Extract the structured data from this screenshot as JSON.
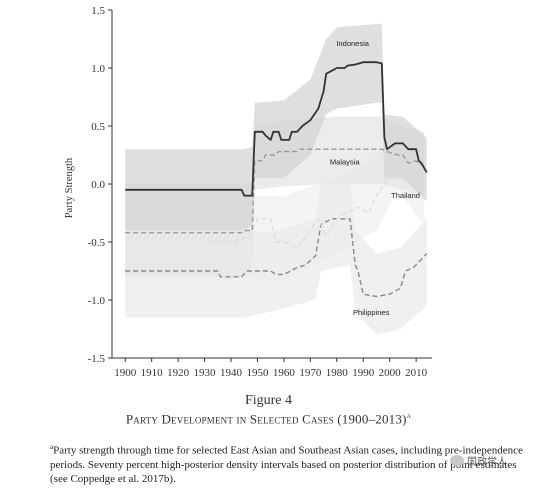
{
  "chart_data": {
    "type": "line",
    "xlabel": "",
    "ylabel": "Party Strength",
    "xlim": [
      1895,
      2016
    ],
    "ylim": [
      -1.5,
      1.5
    ],
    "x_ticks": [
      "1900",
      "1910",
      "1920",
      "1930",
      "1940",
      "1950",
      "1960",
      "1970",
      "1980",
      "1990",
      "2000",
      "2010"
    ],
    "y_ticks": [
      "1.5",
      "1.0",
      "0.5",
      "0.0",
      "-0.5",
      "-1.0",
      "-1.5"
    ],
    "grid": false,
    "series": [
      {
        "name": "Indonesia",
        "style": "solid",
        "color": "#333333",
        "band_color": "#d4d4d4",
        "points": [
          [
            1900,
            -0.05
          ],
          [
            1944,
            -0.05
          ],
          [
            1945,
            -0.1
          ],
          [
            1948,
            -0.1
          ],
          [
            1949,
            0.45
          ],
          [
            1952,
            0.45
          ],
          [
            1953,
            0.42
          ],
          [
            1955,
            0.38
          ],
          [
            1956,
            0.45
          ],
          [
            1958,
            0.45
          ],
          [
            1959,
            0.38
          ],
          [
            1962,
            0.38
          ],
          [
            1963,
            0.45
          ],
          [
            1965,
            0.45
          ],
          [
            1967,
            0.5
          ],
          [
            1970,
            0.55
          ],
          [
            1973,
            0.65
          ],
          [
            1975,
            0.8
          ],
          [
            1976,
            0.95
          ],
          [
            1980,
            1.0
          ],
          [
            1983,
            1.0
          ],
          [
            1984,
            1.02
          ],
          [
            1987,
            1.03
          ],
          [
            1990,
            1.05
          ],
          [
            1995,
            1.05
          ],
          [
            1997,
            1.04
          ],
          [
            1998,
            0.4
          ],
          [
            1999,
            0.3
          ],
          [
            2002,
            0.35
          ],
          [
            2005,
            0.35
          ],
          [
            2007,
            0.3
          ],
          [
            2010,
            0.3
          ],
          [
            2011,
            0.2
          ],
          [
            2012,
            0.18
          ],
          [
            2014,
            0.1
          ]
        ],
        "band": [
          [
            1900,
            -0.4,
            0.3
          ],
          [
            1945,
            -0.4,
            0.3
          ],
          [
            1948,
            -0.35,
            0.32
          ],
          [
            1949,
            0.05,
            0.7
          ],
          [
            1960,
            0.05,
            0.72
          ],
          [
            1970,
            0.25,
            0.9
          ],
          [
            1976,
            0.6,
            1.25
          ],
          [
            1980,
            0.65,
            1.35
          ],
          [
            1995,
            0.7,
            1.38
          ],
          [
            1997,
            0.7,
            1.38
          ],
          [
            1998,
            0.05,
            0.6
          ],
          [
            2005,
            0.05,
            0.58
          ],
          [
            2014,
            -0.15,
            0.4
          ]
        ]
      },
      {
        "name": "Malaysia",
        "style": "dashed",
        "color": "#999999",
        "band_color": "#e6e6e6",
        "points": [
          [
            1900,
            -0.42
          ],
          [
            1944,
            -0.42
          ],
          [
            1946,
            -0.4
          ],
          [
            1948,
            -0.4
          ],
          [
            1949,
            0.2
          ],
          [
            1952,
            0.2
          ],
          [
            1953,
            0.25
          ],
          [
            1957,
            0.25
          ],
          [
            1958,
            0.28
          ],
          [
            1965,
            0.28
          ],
          [
            1966,
            0.3
          ],
          [
            1975,
            0.3
          ],
          [
            1980,
            0.3
          ],
          [
            1990,
            0.3
          ],
          [
            1997,
            0.3
          ],
          [
            1999,
            0.28
          ],
          [
            2003,
            0.25
          ],
          [
            2005,
            0.25
          ],
          [
            2007,
            0.18
          ],
          [
            2010,
            0.2
          ],
          [
            2013,
            0.15
          ]
        ],
        "band": [
          [
            1900,
            -0.8,
            0.0
          ],
          [
            1945,
            -0.8,
            0.0
          ],
          [
            1948,
            -0.7,
            0.0
          ],
          [
            1949,
            -0.05,
            0.5
          ],
          [
            1960,
            -0.02,
            0.55
          ],
          [
            1980,
            0.0,
            0.58
          ],
          [
            1997,
            0.0,
            0.58
          ],
          [
            2005,
            -0.05,
            0.5
          ],
          [
            2013,
            -0.1,
            0.45
          ]
        ]
      },
      {
        "name": "Thailand",
        "style": "dashed",
        "color": "#dddddd",
        "band_color": "#f0f0f0",
        "points": [
          [
            1932,
            -0.5
          ],
          [
            1940,
            -0.5
          ],
          [
            1947,
            -0.45
          ],
          [
            1950,
            -0.3
          ],
          [
            1955,
            -0.3
          ],
          [
            1957,
            -0.5
          ],
          [
            1960,
            -0.5
          ],
          [
            1965,
            -0.55
          ],
          [
            1970,
            -0.4
          ],
          [
            1973,
            -0.3
          ],
          [
            1976,
            -0.45
          ],
          [
            1980,
            -0.3
          ],
          [
            1983,
            -0.25
          ],
          [
            1988,
            -0.2
          ],
          [
            1992,
            -0.25
          ],
          [
            1995,
            -0.1
          ],
          [
            1998,
            0.0
          ],
          [
            2001,
            0.15
          ],
          [
            2003,
            0.25
          ],
          [
            2006,
            0.0
          ],
          [
            2008,
            0.1
          ],
          [
            2011,
            0.05
          ],
          [
            2013,
            -0.05
          ]
        ],
        "band": [
          [
            1932,
            -0.85,
            -0.15
          ],
          [
            1947,
            -0.8,
            -0.1
          ],
          [
            1960,
            -0.85,
            -0.1
          ],
          [
            1980,
            -0.6,
            0.05
          ],
          [
            1995,
            -0.4,
            0.25
          ],
          [
            2003,
            -0.05,
            0.5
          ],
          [
            2013,
            -0.35,
            0.25
          ]
        ]
      },
      {
        "name": "Philippines",
        "style": "dashed",
        "color": "#888888",
        "band_color": "#ebebeb",
        "points": [
          [
            1900,
            -0.75
          ],
          [
            1935,
            -0.75
          ],
          [
            1936,
            -0.8
          ],
          [
            1944,
            -0.8
          ],
          [
            1946,
            -0.75
          ],
          [
            1950,
            -0.75
          ],
          [
            1955,
            -0.75
          ],
          [
            1957,
            -0.78
          ],
          [
            1960,
            -0.78
          ],
          [
            1965,
            -0.72
          ],
          [
            1968,
            -0.7
          ],
          [
            1972,
            -0.62
          ],
          [
            1974,
            -0.35
          ],
          [
            1978,
            -0.3
          ],
          [
            1985,
            -0.3
          ],
          [
            1987,
            -0.7
          ],
          [
            1988,
            -0.75
          ],
          [
            1990,
            -0.95
          ],
          [
            1995,
            -0.97
          ],
          [
            2000,
            -0.95
          ],
          [
            2004,
            -0.9
          ],
          [
            2006,
            -0.75
          ],
          [
            2009,
            -0.72
          ],
          [
            2012,
            -0.65
          ],
          [
            2014,
            -0.6
          ]
        ],
        "band": [
          [
            1900,
            -1.15,
            -0.4
          ],
          [
            1945,
            -1.15,
            -0.4
          ],
          [
            1955,
            -1.1,
            -0.42
          ],
          [
            1972,
            -1.0,
            -0.3
          ],
          [
            1974,
            -0.75,
            0.0
          ],
          [
            1985,
            -0.7,
            0.02
          ],
          [
            1987,
            -1.1,
            -0.4
          ],
          [
            1995,
            -1.3,
            -0.6
          ],
          [
            2004,
            -1.25,
            -0.55
          ],
          [
            2014,
            -1.05,
            -0.3
          ]
        ]
      }
    ],
    "labels": [
      {
        "text": "Indonesia",
        "x": 1986,
        "y": 1.19
      },
      {
        "text": "Malaysia",
        "x": 1983,
        "y": 0.17
      },
      {
        "text": "Thailand",
        "x": 2006,
        "y": -0.12
      },
      {
        "text": "Philippines",
        "x": 1993,
        "y": -1.13
      }
    ]
  },
  "figure": {
    "number": "Figure 4",
    "title": "Party Development in Selected Cases (1900–2013)",
    "title_marker": "a",
    "note_marker": "a",
    "note": "Party strength through time for selected East Asian and Southeast Asian cases, including pre-independence periods. Seventy percent high-posterior density intervals based on posterior distribution of point estimates (see Coppedge et al. 2017b)."
  },
  "watermark": {
    "text": "国政学人",
    "icon": "wechat-icon"
  }
}
